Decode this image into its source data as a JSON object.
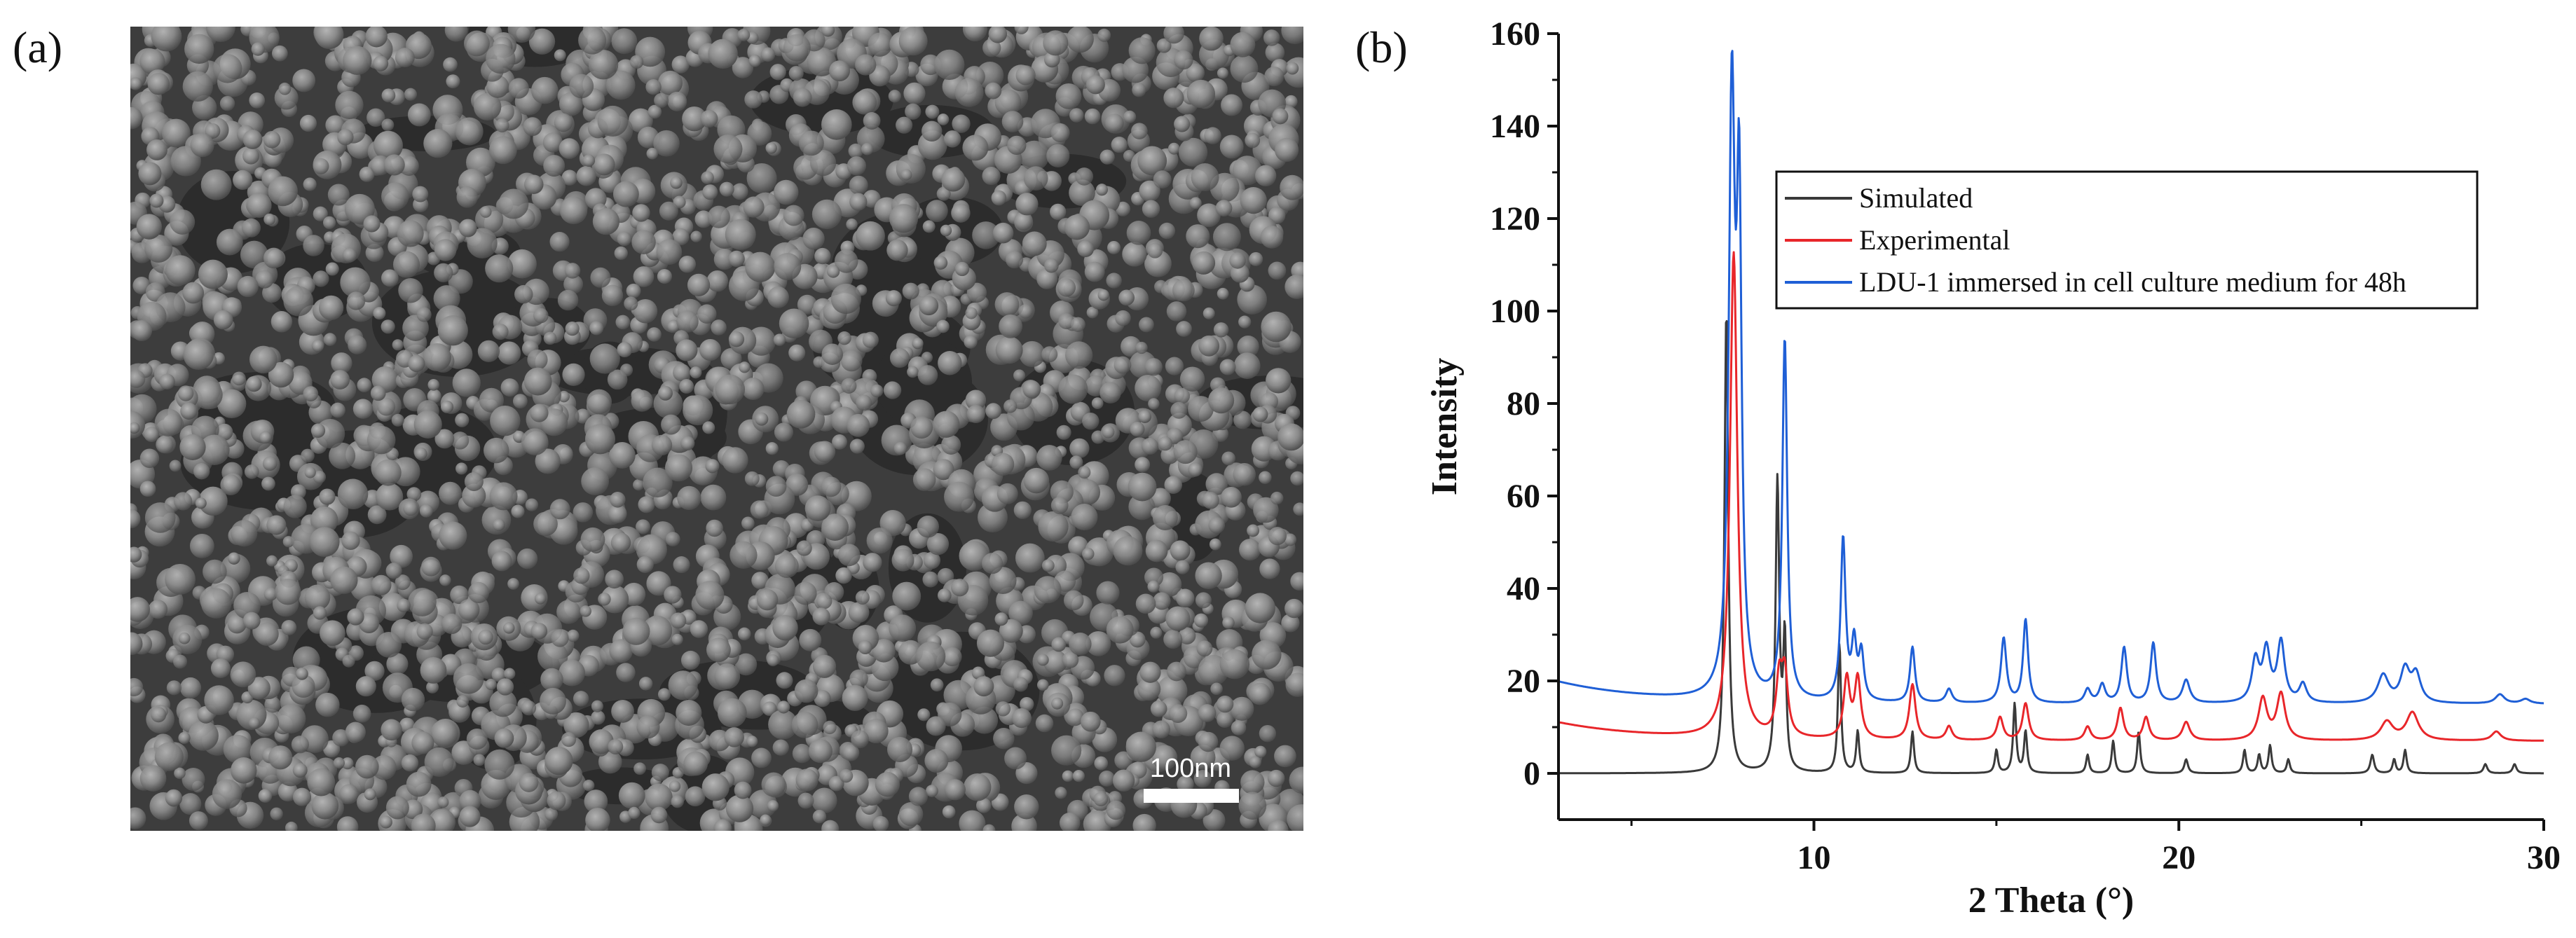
{
  "panel_a": {
    "label": "(a)",
    "scale_bar_text": "100nm"
  },
  "panel_b": {
    "label": "(b)"
  },
  "chart_data": {
    "type": "line",
    "xlabel": "2 Theta (°)",
    "ylabel": "Intensity",
    "xlim": [
      3,
      30
    ],
    "ylim": [
      -10,
      160
    ],
    "xticks": [
      10,
      20,
      30
    ],
    "yticks": [
      0,
      20,
      40,
      60,
      80,
      100,
      120,
      140,
      160
    ],
    "grid": false,
    "legend_position": "top-right",
    "series": [
      {
        "name": "Simulated",
        "color": "#3a3a3a",
        "baseline": 0,
        "peaks": [
          [
            7.6,
            100,
            0.06
          ],
          [
            9.0,
            63,
            0.06
          ],
          [
            9.2,
            28,
            0.05
          ],
          [
            10.7,
            28,
            0.05
          ],
          [
            11.2,
            9,
            0.05
          ],
          [
            12.7,
            9,
            0.05
          ],
          [
            15.0,
            5,
            0.05
          ],
          [
            15.5,
            15,
            0.05
          ],
          [
            15.8,
            9,
            0.05
          ],
          [
            17.5,
            4,
            0.05
          ],
          [
            18.2,
            7,
            0.05
          ],
          [
            18.9,
            9,
            0.05
          ],
          [
            20.2,
            3,
            0.06
          ],
          [
            21.8,
            5,
            0.05
          ],
          [
            22.2,
            4,
            0.05
          ],
          [
            22.5,
            6,
            0.05
          ],
          [
            23.0,
            3,
            0.05
          ],
          [
            25.3,
            4,
            0.06
          ],
          [
            25.9,
            3,
            0.05
          ],
          [
            26.2,
            5,
            0.05
          ],
          [
            28.4,
            2,
            0.06
          ],
          [
            29.2,
            2,
            0.06
          ]
        ]
      },
      {
        "name": "Experimental",
        "color": "#e8262a",
        "baseline": 7,
        "peaks": [
          [
            7.8,
            105,
            0.12
          ],
          [
            9.05,
            12,
            0.1
          ],
          [
            9.2,
            13,
            0.1
          ],
          [
            10.9,
            13,
            0.1
          ],
          [
            11.2,
            13,
            0.1
          ],
          [
            12.7,
            12,
            0.1
          ],
          [
            13.7,
            3,
            0.1
          ],
          [
            15.1,
            5,
            0.1
          ],
          [
            15.8,
            8,
            0.1
          ],
          [
            17.5,
            3,
            0.1
          ],
          [
            18.4,
            7,
            0.1
          ],
          [
            19.1,
            5,
            0.1
          ],
          [
            20.2,
            4,
            0.12
          ],
          [
            22.3,
            9,
            0.14
          ],
          [
            22.8,
            10,
            0.14
          ],
          [
            25.7,
            4,
            0.2
          ],
          [
            26.4,
            6,
            0.2
          ],
          [
            28.7,
            2,
            0.15
          ]
        ]
      },
      {
        "name": "LDU-1 immersed in cell culture medium for 48h",
        "color": "#1f5fd6",
        "baseline": 15,
        "peaks": [
          [
            7.75,
            127,
            0.1
          ],
          [
            7.95,
            100,
            0.08
          ],
          [
            9.2,
            78,
            0.08
          ],
          [
            10.8,
            35,
            0.08
          ],
          [
            11.1,
            12,
            0.08
          ],
          [
            11.3,
            10,
            0.08
          ],
          [
            12.7,
            12,
            0.08
          ],
          [
            13.7,
            3,
            0.1
          ],
          [
            15.2,
            14,
            0.09
          ],
          [
            15.8,
            18,
            0.08
          ],
          [
            17.5,
            3,
            0.1
          ],
          [
            17.9,
            4,
            0.1
          ],
          [
            18.5,
            12,
            0.09
          ],
          [
            19.3,
            13,
            0.09
          ],
          [
            20.2,
            5,
            0.12
          ],
          [
            22.1,
            9,
            0.12
          ],
          [
            22.4,
            11,
            0.12
          ],
          [
            22.8,
            13,
            0.12
          ],
          [
            23.4,
            4,
            0.12
          ],
          [
            25.6,
            6,
            0.18
          ],
          [
            26.2,
            7,
            0.15
          ],
          [
            26.5,
            6,
            0.15
          ],
          [
            28.8,
            2,
            0.15
          ],
          [
            29.5,
            1,
            0.15
          ]
        ]
      }
    ]
  }
}
